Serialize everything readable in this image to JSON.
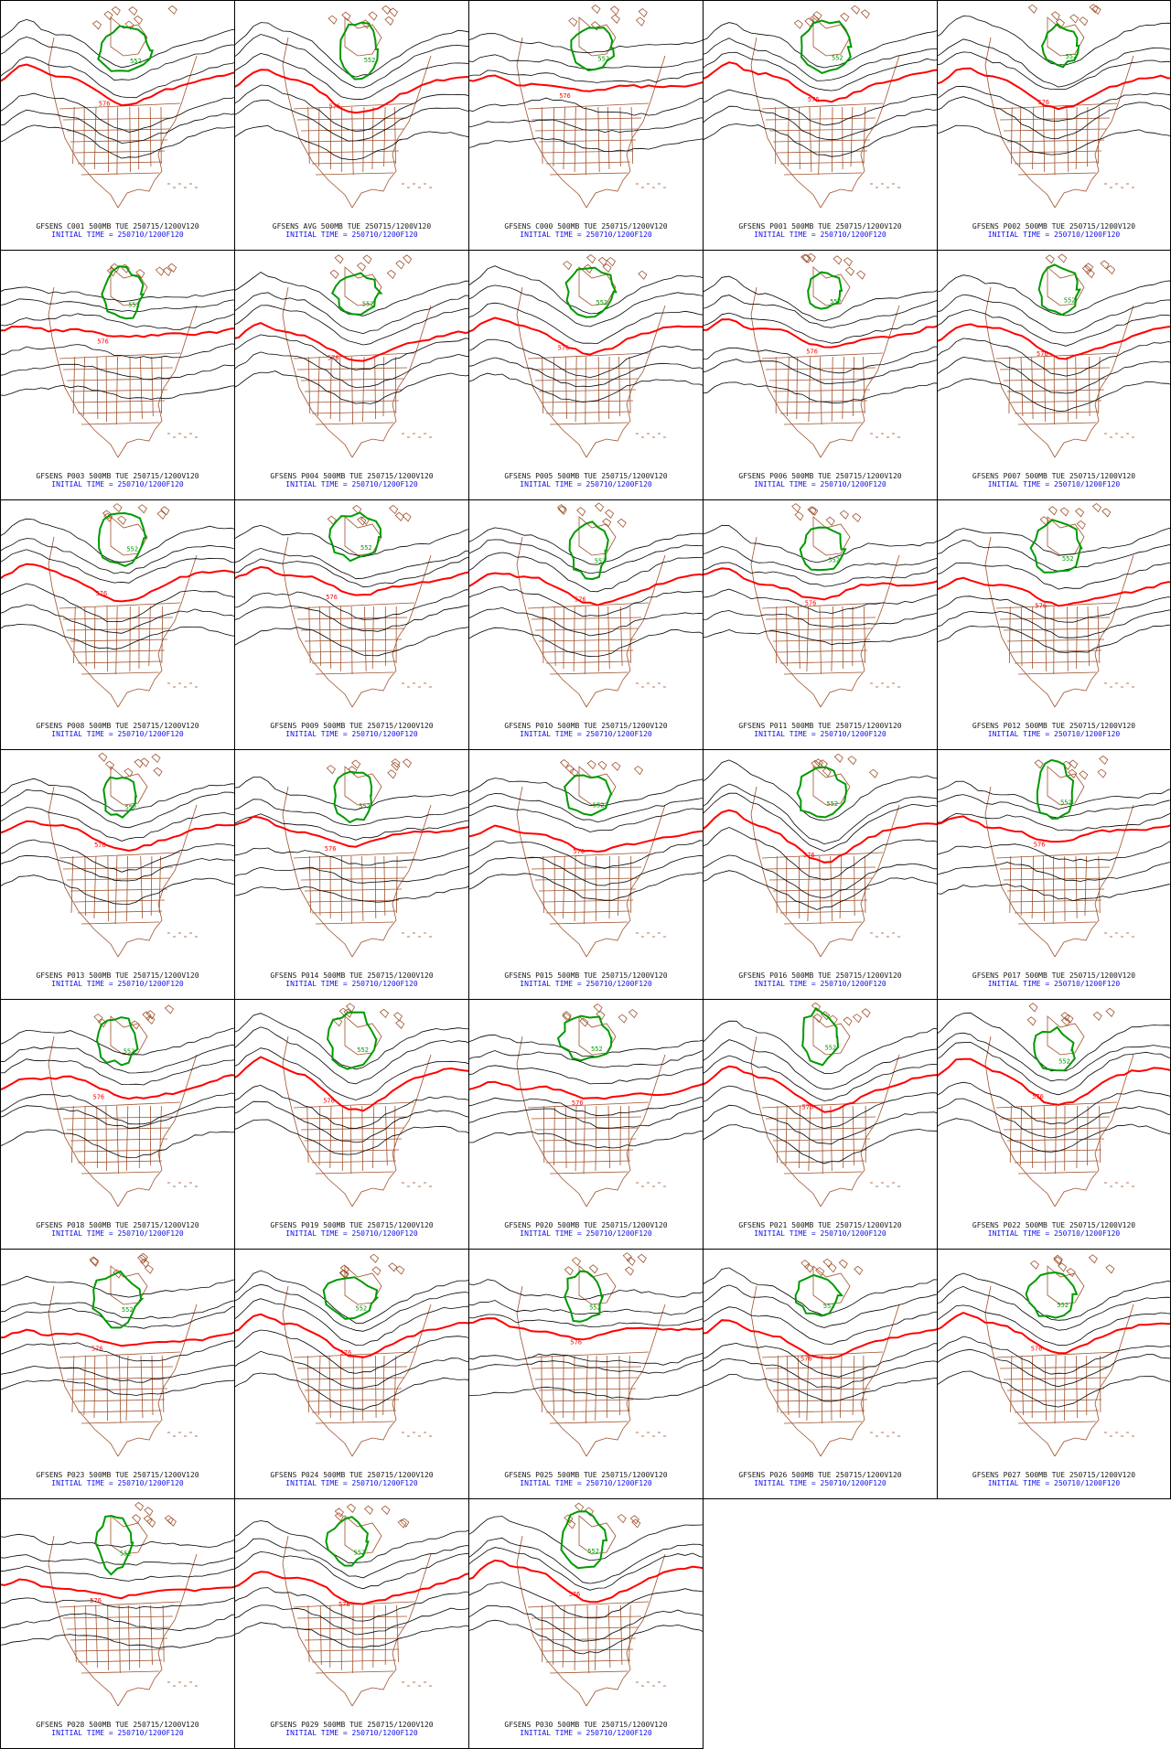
{
  "colors": {
    "height_contour": "#000000",
    "contour_576": "#ff0000",
    "contour_552": "#009a00",
    "coastline": "#a0522d",
    "initial_time_text": "#1010ee"
  },
  "panels": [
    {
      "member": "C001",
      "title": "GFSENS C001 500MB TUE 250715/1200V120",
      "subtitle": "INITIAL TIME = 250710/1200F120",
      "contour_labels": [
        "552",
        "576"
      ]
    },
    {
      "member": "AVG",
      "title": "GFSENS AVG 500MB TUE 250715/1200V120",
      "subtitle": "INITIAL TIME = 250710/1200F120",
      "contour_labels": [
        "552",
        "576"
      ]
    },
    {
      "member": "C000",
      "title": "GFSENS C000 500MB TUE 250715/1200V120",
      "subtitle": "INITIAL TIME = 250710/1200F120",
      "contour_labels": [
        "552",
        "576"
      ]
    },
    {
      "member": "P001",
      "title": "GFSENS P001 500MB TUE 250715/1200V120",
      "subtitle": "INITIAL TIME = 250710/1200F120",
      "contour_labels": [
        "552",
        "576"
      ]
    },
    {
      "member": "P002",
      "title": "GFSENS P002 500MB TUE 250715/1200V120",
      "subtitle": "INITIAL TIME = 250710/1200F120",
      "contour_labels": [
        "552",
        "576"
      ]
    },
    {
      "member": "P003",
      "title": "GFSENS P003 500MB TUE 250715/1200V120",
      "subtitle": "INITIAL TIME = 250710/1200F120",
      "contour_labels": [
        "552",
        "576"
      ]
    },
    {
      "member": "P004",
      "title": "GFSENS P004 500MB TUE 250715/1200V120",
      "subtitle": "INITIAL TIME = 250710/1200F120",
      "contour_labels": [
        "552",
        "576"
      ]
    },
    {
      "member": "P005",
      "title": "GFSENS P005 500MB TUE 250715/1200V120",
      "subtitle": "INITIAL TIME = 250710/1200F120",
      "contour_labels": [
        "552",
        "576"
      ]
    },
    {
      "member": "P006",
      "title": "GFSENS P006 500MB TUE 250715/1200V120",
      "subtitle": "INITIAL TIME = 250710/1200F120",
      "contour_labels": [
        "552",
        "576"
      ]
    },
    {
      "member": "P007",
      "title": "GFSENS P007 500MB TUE 250715/1200V120",
      "subtitle": "INITIAL TIME = 250710/1200F120",
      "contour_labels": [
        "552",
        "576"
      ]
    },
    {
      "member": "P008",
      "title": "GFSENS P008 500MB TUE 250715/1200V120",
      "subtitle": "INITIAL TIME = 250710/1200F120",
      "contour_labels": [
        "552",
        "576"
      ]
    },
    {
      "member": "P009",
      "title": "GFSENS P009 500MB TUE 250715/1200V120",
      "subtitle": "INITIAL TIME = 250710/1200F120",
      "contour_labels": [
        "552",
        "576"
      ]
    },
    {
      "member": "P010",
      "title": "GFSENS P010 500MB TUE 250715/1200V120",
      "subtitle": "INITIAL TIME = 250710/1200F120",
      "contour_labels": [
        "552",
        "576"
      ]
    },
    {
      "member": "P011",
      "title": "GFSENS P011 500MB TUE 250715/1200V120",
      "subtitle": "INITIAL TIME = 250710/1200F120",
      "contour_labels": [
        "552",
        "576"
      ]
    },
    {
      "member": "P012",
      "title": "GFSENS P012 500MB TUE 250715/1200V120",
      "subtitle": "INITIAL TIME = 250710/1200F120",
      "contour_labels": [
        "552",
        "576"
      ]
    },
    {
      "member": "P013",
      "title": "GFSENS P013 500MB TUE 250715/1200V120",
      "subtitle": "INITIAL TIME = 250710/1200F120",
      "contour_labels": [
        "552",
        "576"
      ]
    },
    {
      "member": "P014",
      "title": "GFSENS P014 500MB TUE 250715/1200V120",
      "subtitle": "INITIAL TIME = 250710/1200F120",
      "contour_labels": [
        "552",
        "576"
      ]
    },
    {
      "member": "P015",
      "title": "GFSENS P015 500MB TUE 250715/1200V120",
      "subtitle": "INITIAL TIME = 250710/1200F120",
      "contour_labels": [
        "552",
        "576"
      ]
    },
    {
      "member": "P016",
      "title": "GFSENS P016 500MB TUE 250715/1200V120",
      "subtitle": "INITIAL TIME = 250710/1200F120",
      "contour_labels": [
        "552",
        "576"
      ]
    },
    {
      "member": "P017",
      "title": "GFSENS P017 500MB TUE 250715/1200V120",
      "subtitle": "INITIAL TIME = 250710/1200F120",
      "contour_labels": [
        "552",
        "576"
      ]
    },
    {
      "member": "P018",
      "title": "GFSENS P018 500MB TUE 250715/1200V120",
      "subtitle": "INITIAL TIME = 250710/1200F120",
      "contour_labels": [
        "552",
        "576"
      ]
    },
    {
      "member": "P019",
      "title": "GFSENS P019 500MB TUE 250715/1200V120",
      "subtitle": "INITIAL TIME = 250710/1200F120",
      "contour_labels": [
        "552",
        "576"
      ]
    },
    {
      "member": "P020",
      "title": "GFSENS P020 500MB TUE 250715/1200V120",
      "subtitle": "INITIAL TIME = 250710/1200F120",
      "contour_labels": [
        "552",
        "576"
      ]
    },
    {
      "member": "P021",
      "title": "GFSENS P021 500MB TUE 250715/1200V120",
      "subtitle": "INITIAL TIME = 250710/1200F120",
      "contour_labels": [
        "552",
        "576"
      ]
    },
    {
      "member": "P022",
      "title": "GFSENS P022 500MB TUE 250715/1200V120",
      "subtitle": "INITIAL TIME = 250710/1200F120",
      "contour_labels": [
        "552",
        "576"
      ]
    },
    {
      "member": "P023",
      "title": "GFSENS P023 500MB TUE 250715/1200V120",
      "subtitle": "INITIAL TIME = 250710/1200F120",
      "contour_labels": [
        "552",
        "576"
      ]
    },
    {
      "member": "P024",
      "title": "GFSENS P024 500MB TUE 250715/1200V120",
      "subtitle": "INITIAL TIME = 250710/1200F120",
      "contour_labels": [
        "552",
        "576"
      ]
    },
    {
      "member": "P025",
      "title": "GFSENS P025 500MB TUE 250715/1200V120",
      "subtitle": "INITIAL TIME = 250710/1200F120",
      "contour_labels": [
        "552",
        "576"
      ]
    },
    {
      "member": "P026",
      "title": "GFSENS P026 500MB TUE 250715/1200V120",
      "subtitle": "INITIAL TIME = 250710/1200F120",
      "contour_labels": [
        "552",
        "576"
      ]
    },
    {
      "member": "P027",
      "title": "GFSENS P027 500MB TUE 250715/1200V120",
      "subtitle": "INITIAL TIME = 250710/1200F120",
      "contour_labels": [
        "552",
        "576"
      ]
    },
    {
      "member": "P028",
      "title": "GFSENS P028 500MB TUE 250715/1200V120",
      "subtitle": "INITIAL TIME = 250710/1200F120",
      "contour_labels": [
        "552",
        "576"
      ]
    },
    {
      "member": "P029",
      "title": "GFSENS P029 500MB TUE 250715/1200V120",
      "subtitle": "INITIAL TIME = 250710/1200F120",
      "contour_labels": [
        "552",
        "576"
      ]
    },
    {
      "member": "P030",
      "title": "GFSENS P030 500MB TUE 250715/1200V120",
      "subtitle": "INITIAL TIME = 250710/1200F120",
      "contour_labels": [
        "552",
        "576"
      ]
    }
  ]
}
